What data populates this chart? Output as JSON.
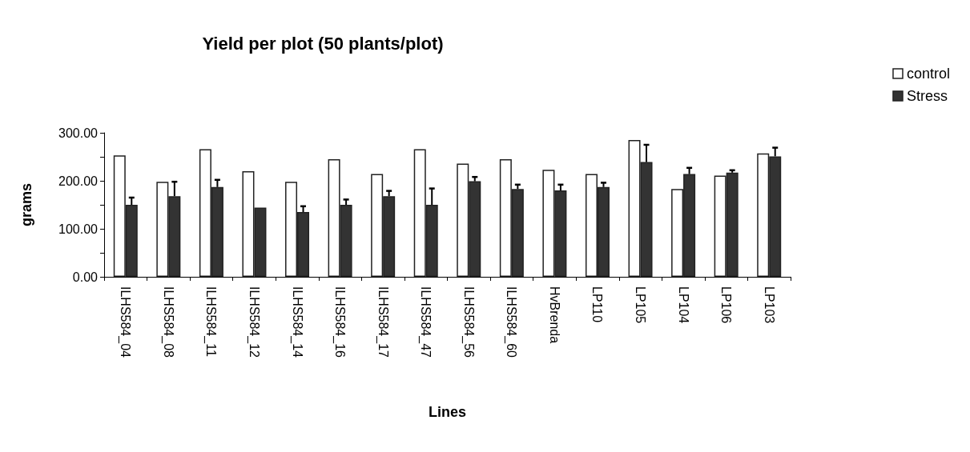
{
  "chart_data": {
    "type": "bar",
    "title": "Yield per plot (50 plants/plot)",
    "xlabel": "Lines",
    "ylabel": "grams",
    "categories": [
      "ILHS584_04",
      "ILHS584_08",
      "ILHS584_11",
      "ILHS584_12",
      "ILHS584_14",
      "ILHS584_16",
      "ILHS584_17",
      "ILHS584_47",
      "ILHS584_56",
      "ILHS584_60",
      "HvBrenda",
      "LP110",
      "LP105",
      "LP104",
      "LP106",
      "LP103"
    ],
    "series": [
      {
        "name": "control",
        "color": "#ffffff",
        "values": [
          253,
          198,
          266,
          220,
          198,
          245,
          214,
          266,
          236,
          245,
          223,
          214,
          285,
          183,
          211,
          257
        ]
      },
      {
        "name": "Stress",
        "color": "#333333",
        "values": [
          150,
          168,
          187,
          144,
          135,
          150,
          168,
          150,
          199,
          183,
          180,
          187,
          239,
          214,
          217,
          251
        ],
        "errors": [
          [
            150,
            165
          ],
          [
            168,
            198
          ],
          [
            187,
            202
          ],
          null,
          [
            135,
            147
          ],
          [
            150,
            161
          ],
          [
            168,
            179
          ],
          [
            150,
            184
          ],
          [
            199,
            208
          ],
          [
            183,
            192
          ],
          [
            180,
            192
          ],
          [
            187,
            196
          ],
          [
            239,
            275
          ],
          [
            214,
            227
          ],
          [
            217,
            222
          ],
          [
            251,
            269
          ]
        ]
      }
    ],
    "ylim": [
      0,
      300
    ],
    "yticks": [
      {
        "value": 0,
        "label": "0.00"
      },
      {
        "value": 50,
        "label": null
      },
      {
        "value": 100,
        "label": "100.00"
      },
      {
        "value": 150,
        "label": null
      },
      {
        "value": 200,
        "label": "200.00"
      },
      {
        "value": 250,
        "label": null
      },
      {
        "value": 300,
        "label": "300.00"
      }
    ],
    "grid": false,
    "legend": "top right"
  }
}
